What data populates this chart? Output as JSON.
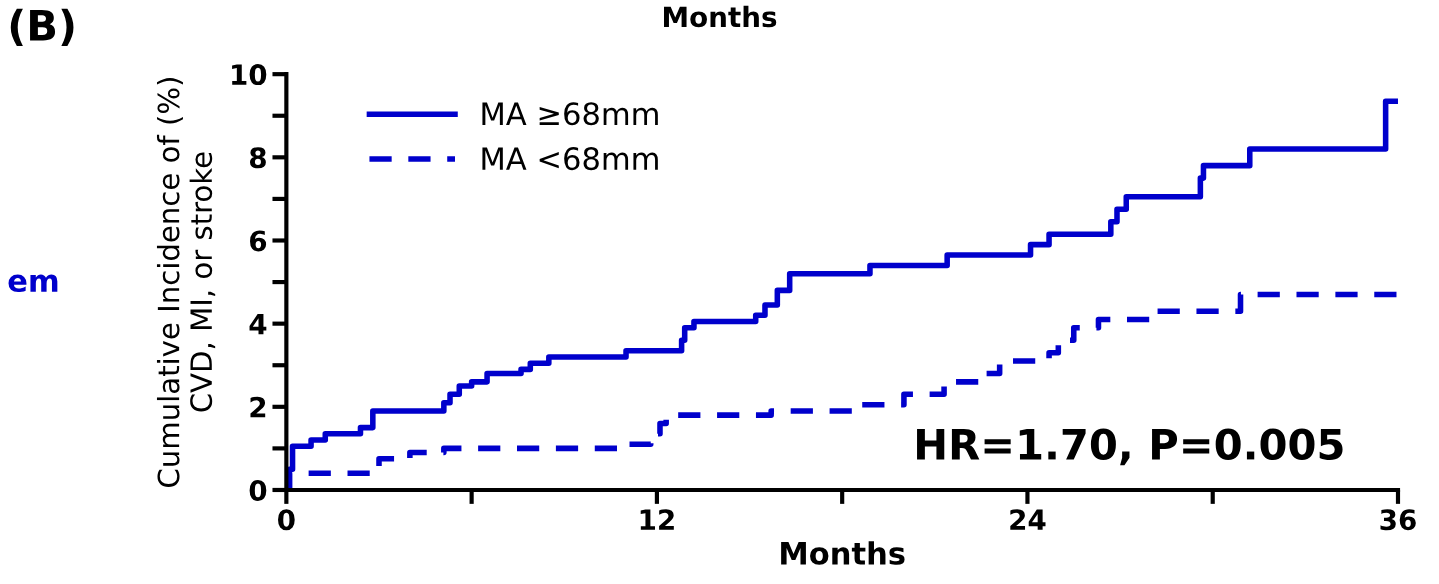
{
  "chart_data": {
    "type": "step",
    "title": "(B)",
    "xlabel": "Months",
    "ylabel": "Cumulative Incidence of (%)\nCVD, MI, or stroke",
    "annotations": [
      "HR=1.70, P=0.005",
      "Months",
      "em"
    ],
    "series": [
      {
        "name": "MA ≥68mm",
        "color": "#0000cc",
        "line_style": "solid",
        "x": [
          0,
          0.1,
          0.2,
          0.8,
          1.26,
          2.4,
          2.8,
          5.1,
          5.3,
          5.6,
          6.0,
          6.5,
          7.6,
          7.9,
          8.5,
          11.0,
          12.8,
          12.9,
          13.2,
          15.2,
          15.5,
          15.9,
          16.3,
          18.9,
          21.4,
          24.1,
          24.7,
          26.7,
          26.9,
          27.2,
          29.6,
          29.7,
          31.2,
          35.6,
          36
        ],
        "values": [
          0,
          0.5,
          1.05,
          1.2,
          1.35,
          1.5,
          1.9,
          2.1,
          2.3,
          2.5,
          2.6,
          2.8,
          2.9,
          3.05,
          3.2,
          3.35,
          3.6,
          3.9,
          4.05,
          4.2,
          4.45,
          4.8,
          5.2,
          5.4,
          5.65,
          5.9,
          6.15,
          6.45,
          6.75,
          7.05,
          7.5,
          7.8,
          8.2,
          9.35,
          9.35
        ]
      },
      {
        "name": "MA <68mm",
        "color": "#0000cc",
        "line_style": "dashed",
        "x": [
          0,
          0.1,
          2.7,
          3.0,
          4.0,
          5.1,
          10.8,
          11.8,
          12.1,
          12.3,
          15.7,
          18.6,
          20.0,
          21.3,
          22.5,
          23.1,
          24.7,
          25.0,
          25.5,
          26.3,
          28.0,
          30.9,
          36
        ],
        "values": [
          0,
          0.4,
          0.55,
          0.75,
          0.9,
          1.0,
          1.1,
          1.35,
          1.6,
          1.8,
          1.9,
          2.05,
          2.3,
          2.6,
          2.8,
          3.1,
          3.3,
          3.6,
          3.9,
          4.1,
          4.3,
          4.7,
          4.7
        ]
      }
    ],
    "xlim": [
      0,
      36
    ],
    "xticks": [
      0,
      {
        "value": 6,
        "label": null
      },
      12,
      {
        "value": 18,
        "label": null
      },
      24,
      {
        "value": 30,
        "label": null
      },
      36
    ],
    "ylim": [
      0,
      10
    ],
    "yticks": [
      0,
      {
        "value": 1,
        "label": null
      },
      2,
      {
        "value": 3,
        "label": null
      },
      4,
      {
        "value": 5,
        "label": null
      },
      6,
      {
        "value": 7,
        "label": null
      },
      8,
      {
        "value": 9,
        "label": null
      },
      10
    ],
    "grid": false,
    "legend": "top left"
  }
}
